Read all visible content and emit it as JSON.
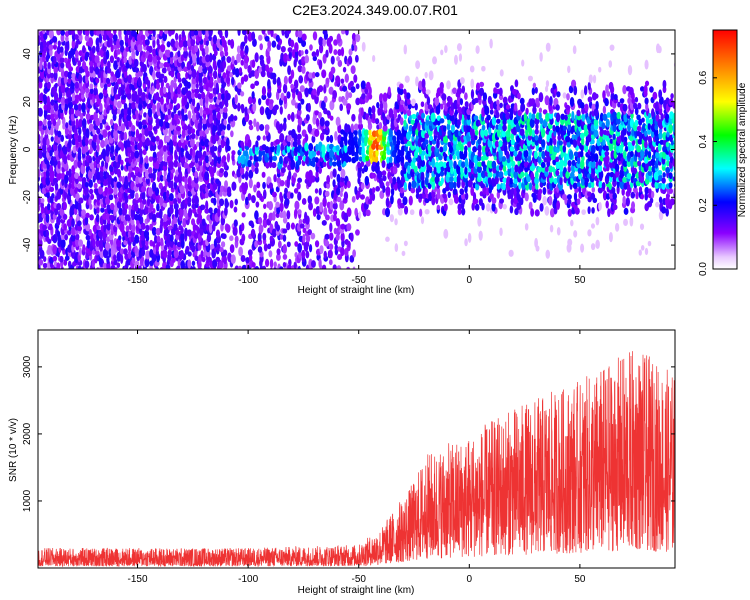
{
  "title": "C2E3.2024.349.00.07.R01",
  "chart_data": [
    {
      "type": "heatmap",
      "xlabel": "Height of straight line (km)",
      "ylabel": "Frequency (Hz)",
      "xlim": [
        -195,
        93
      ],
      "ylim": [
        -50,
        50
      ],
      "xticks": [
        -150,
        -100,
        -50,
        0,
        50
      ],
      "yticks": [
        -40,
        -20,
        0,
        20,
        40
      ],
      "colorbar": {
        "label": "Normalized spectral amplitude",
        "range": [
          0,
          0.75
        ],
        "ticks": [
          0,
          0.2,
          0.4,
          0.6
        ],
        "tick_labels": [
          "0.0",
          "0.2",
          "0.4",
          "0.6"
        ],
        "colormap": "rainbow (white-violet-blue-cyan-green-yellow-red)"
      },
      "features": [
        {
          "x_range": [
            -195,
            -50
          ],
          "description": "scattered low-amplitude noise over full frequency band"
        },
        {
          "x_range": [
            -105,
            -55
          ],
          "y_center": -3,
          "amplitude": 0.3
        },
        {
          "x_range": [
            -58,
            -30
          ],
          "y_center": 2,
          "amplitude": 0.72
        },
        {
          "x_range": [
            -30,
            93
          ],
          "y_range": [
            -15,
            15
          ],
          "amplitude": 0.3
        }
      ]
    },
    {
      "type": "line",
      "xlabel": "Height of straight line (km)",
      "ylabel": "SNR (10 * v/v)",
      "xlim": [
        -195,
        93
      ],
      "ylim": [
        0,
        3550
      ],
      "xticks": [
        -150,
        -100,
        -50,
        0,
        50
      ],
      "yticks": [
        1000,
        2000,
        3000
      ],
      "series": [
        {
          "color": "#ee3333",
          "envelope": [
            {
              "x": -195,
              "max": 300
            },
            {
              "x": -100,
              "max": 300
            },
            {
              "x": -50,
              "max": 350
            },
            {
              "x": -40,
              "max": 600
            },
            {
              "x": -25,
              "max": 1300
            },
            {
              "x": -20,
              "max": 1700
            },
            {
              "x": 0,
              "max": 2000
            },
            {
              "x": 20,
              "max": 2400
            },
            {
              "x": 50,
              "max": 2800
            },
            {
              "x": 75,
              "max": 3300
            },
            {
              "x": 93,
              "max": 2900
            }
          ]
        }
      ]
    }
  ]
}
